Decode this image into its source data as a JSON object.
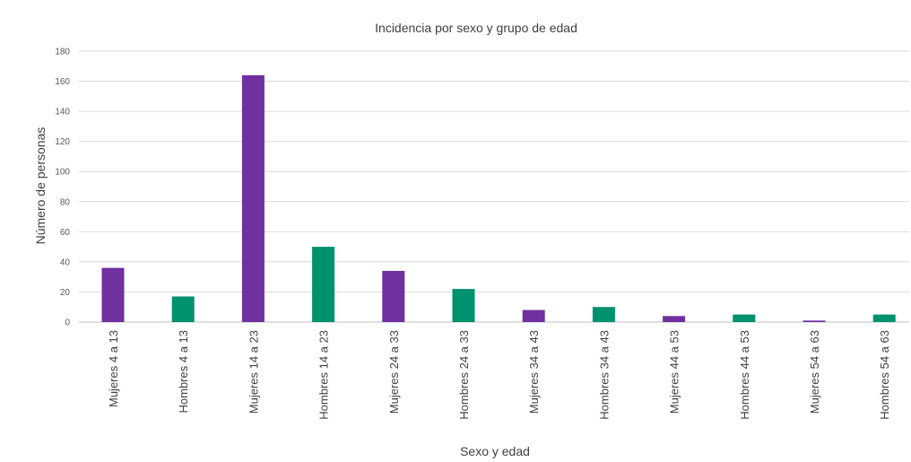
{
  "chart_data": {
    "type": "bar",
    "title": "Incidencia por sexo y grupo de edad",
    "xlabel": "Sexo y edad",
    "ylabel": "Número de personas",
    "ylim": [
      0,
      180
    ],
    "yticks": [
      0,
      20,
      40,
      60,
      80,
      100,
      120,
      140,
      160,
      180
    ],
    "grid": true,
    "legend": "none",
    "categories": [
      "Mujeres 4 a 13",
      "Hombres 4 a 13",
      "Mujeres 14 a 23",
      "Hombres 14 a 23",
      "Mujeres 24 a 33",
      "Hombres 24 a 33",
      "Mujeres 34 a 43",
      "Hombres 34 a 43",
      "Mujeres 44 a 53",
      "Hombres 44 a 53",
      "Mujeres 54 a 63",
      "Hombres 54 a 63"
    ],
    "values": [
      36,
      17,
      164,
      50,
      34,
      22,
      8,
      10,
      4,
      5,
      1,
      5
    ],
    "colors": {
      "Mujeres": "#7030a0",
      "Hombres": "#00916e"
    }
  }
}
